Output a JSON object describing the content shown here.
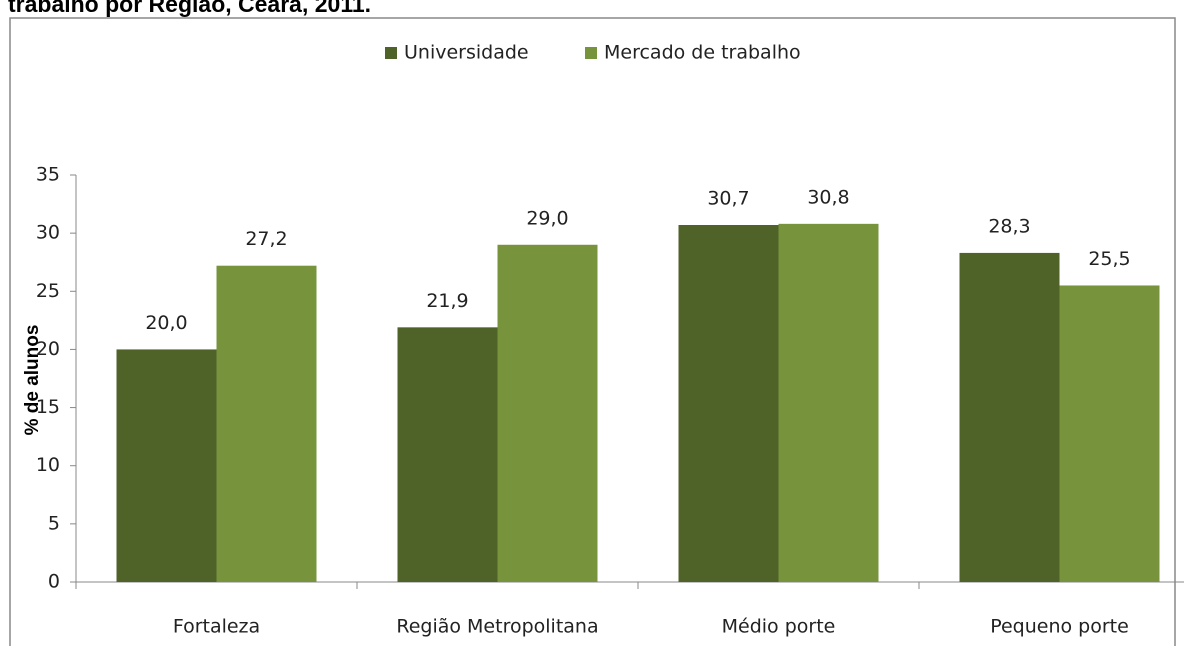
{
  "chart_data": {
    "type": "bar",
    "title": "trabalho por Região, Ceará, 2011.",
    "y_label": "% de alunos",
    "categories": [
      "Fortaleza",
      "Região Metropolitana",
      "Médio porte",
      "Pequeno porte"
    ],
    "series": [
      {
        "name": "Universidade",
        "color": "#4f6228",
        "values": [
          20.0,
          21.9,
          30.7,
          28.3
        ],
        "value_labels": [
          "20,0",
          "21,9",
          "30,7",
          "28,3"
        ]
      },
      {
        "name": "Mercado de trabalho",
        "color": "#77933c",
        "values": [
          27.2,
          29.0,
          30.8,
          25.5
        ],
        "value_labels": [
          "27,2",
          "29,0",
          "30,8",
          "25,5"
        ]
      }
    ],
    "ylim": [
      0,
      35
    ],
    "yticks": [
      0,
      5,
      10,
      15,
      20,
      25,
      30,
      35
    ],
    "grid": false,
    "legend": "top"
  }
}
